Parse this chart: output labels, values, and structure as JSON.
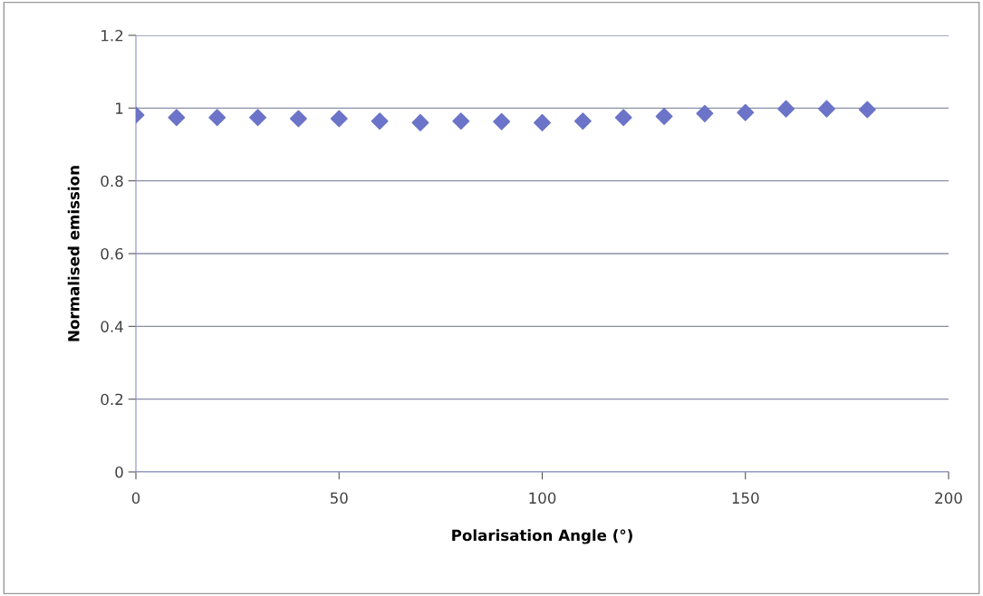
{
  "chart_data": {
    "type": "scatter",
    "xlabel": "Polarisation Angle (°)",
    "ylabel": "Normalised emission",
    "x": [
      0,
      10,
      20,
      30,
      40,
      50,
      60,
      70,
      80,
      90,
      100,
      110,
      120,
      130,
      140,
      150,
      160,
      170,
      180
    ],
    "series": [
      {
        "color": "#6b74c8",
        "values": [
          0.981,
          0.974,
          0.974,
          0.974,
          0.971,
          0.971,
          0.964,
          0.96,
          0.964,
          0.963,
          0.96,
          0.964,
          0.974,
          0.977,
          0.985,
          0.988,
          0.998,
          0.998,
          0.996
        ]
      }
    ],
    "xlim": [
      0,
      200
    ],
    "xticks": [
      0,
      50,
      100,
      150,
      200
    ],
    "ylim": [
      0,
      1.2
    ],
    "yticks": [
      0,
      0.2,
      0.4,
      0.6,
      0.8,
      1,
      1.2
    ],
    "grid": "y",
    "marker": "diamond"
  }
}
